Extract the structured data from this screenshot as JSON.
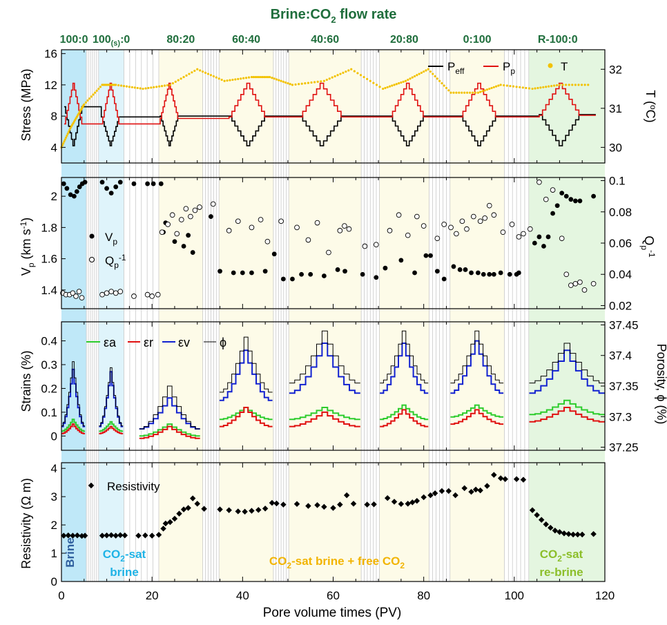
{
  "figure": {
    "top_title": "Brine:CO",
    "top_title_sub": "2",
    "top_title_tail": " flow rate",
    "xlabel": "Pore volume times (PV)",
    "x_range": [
      0,
      120
    ],
    "x_ticks": [
      "0",
      "20",
      "40",
      "60",
      "80",
      "100",
      "120"
    ]
  },
  "colors": {
    "stage_green": "#1f6e3c",
    "brine_blue": "#2f5f9e",
    "co2sat_cyan": "#1fb3e6",
    "free_co2_yellow": "#f2b400",
    "rebrine_green": "#8cbf2a",
    "peff": "#000000",
    "pp": "#e01010",
    "temp": "#f2c200",
    "ea": "#2ccc2c",
    "er": "#e01010",
    "ev": "#1020d0",
    "phi": "#000000"
  },
  "stages": [
    {
      "main": "100:0",
      "sub": "",
      "tail": ""
    },
    {
      "main": "100",
      "sub": "(s)",
      "tail": ":0"
    },
    {
      "main": "80:20",
      "sub": "",
      "tail": ""
    },
    {
      "main": "60:40",
      "sub": "",
      "tail": ""
    },
    {
      "main": "40:60",
      "sub": "",
      "tail": ""
    },
    {
      "main": "20:80",
      "sub": "",
      "tail": ""
    },
    {
      "main": "0:100",
      "sub": "",
      "tail": ""
    },
    {
      "main": "R-100:0",
      "sub": "",
      "tail": ""
    }
  ],
  "region_labels": {
    "brine": "Brine",
    "co2sat_1": "CO",
    "co2sat_1_sub": "2",
    "co2sat_1_tail": "-sat",
    "co2sat_2": "brine",
    "free_1": "CO",
    "free_1_sub": "2",
    "free_1_tail": "-sat brine + free CO",
    "free_1_sub2": "2",
    "rebrine_1": "CO",
    "rebrine_1_sub": "2",
    "rebrine_1_tail": "-sat",
    "rebrine_2": "re-brine"
  },
  "panel_stress": {
    "ylabel": "Stress (MPa)",
    "ylabel_right": "T (",
    "ylabel_right_sup": "o",
    "ylabel_right_tail": "C)",
    "y_ticks": [
      "4",
      "8",
      "12",
      "16"
    ],
    "y_right_ticks": [
      "30",
      "31",
      "32"
    ],
    "legend": {
      "peff": "P",
      "peff_sub": "eff",
      "pp": "P",
      "pp_sub": "p",
      "t": "T"
    }
  },
  "panel_velocity": {
    "ylabel": "V",
    "ylabel_sub": "p",
    "ylabel_tail": " (km s",
    "ylabel_sup": "-1",
    "ylabel_end": ")",
    "ylabel_right": "Q",
    "ylabel_right_sub": "p",
    "ylabel_right_sup": "-1",
    "y_ticks": [
      "1.4",
      "1.6",
      "1.8",
      "2"
    ],
    "y_right_ticks": [
      "0.02",
      "0.04",
      "0.06",
      "0.08",
      "0.1"
    ],
    "legend": {
      "vp": "V",
      "vp_sub": "p",
      "q": "Q",
      "q_sub": "p",
      "q_sup": "-1"
    }
  },
  "panel_strain": {
    "ylabel": "Strains (%)",
    "ylabel_right": "Porosity, ϕ (%)",
    "y_ticks": [
      "0",
      "0.1",
      "0.2",
      "0.3",
      "0.4"
    ],
    "y_right_ticks": [
      "37.25",
      "37.3",
      "37.35",
      "37.4",
      "37.45"
    ],
    "legend": {
      "ea": "εa",
      "er": "εr",
      "ev": "εv",
      "phi": "ϕ"
    }
  },
  "panel_resistivity": {
    "ylabel": "Resistivity (Ω m)",
    "y_ticks": [
      "0",
      "1",
      "2",
      "3",
      "4"
    ],
    "legend": "Resistivity"
  },
  "chart_data": {
    "type": "scatter",
    "x_unit": "Pore volume times (PV)",
    "xlim": [
      0,
      120
    ],
    "stage_boundaries_pv": [
      [
        0,
        5.5
      ],
      [
        8.2,
        13.8
      ],
      [
        21.5,
        31.2
      ],
      [
        34.8,
        46.8
      ],
      [
        50.2,
        66.2
      ],
      [
        70.2,
        81.2
      ],
      [
        85.8,
        97.8
      ],
      [
        103.2,
        120
      ]
    ],
    "stress": {
      "ylim": [
        2,
        16.5
      ],
      "temp_ylim": [
        29.6,
        32.5
      ],
      "peff_hold_levels_MPa": [
        9.2,
        7.9,
        8.0,
        8.0,
        8.0,
        8.0,
        8.0,
        8.2
      ],
      "pp_hold_levels_MPa": [
        7.0,
        7.0,
        7.7,
        7.9,
        7.9,
        7.9,
        7.9,
        8.1
      ],
      "peak_pp_MPa": 12.2,
      "min_peff_MPa": 4.2,
      "temperature_C": {
        "x": [
          0,
          2,
          4,
          5,
          9,
          12,
          18,
          24,
          30,
          36,
          42,
          46,
          51,
          58,
          64,
          71,
          76,
          81,
          86,
          92,
          97,
          104,
          110,
          117
        ],
        "y": [
          30.0,
          30.5,
          30.9,
          31.1,
          31.6,
          31.6,
          31.5,
          31.6,
          32.0,
          31.7,
          31.8,
          31.8,
          31.6,
          31.7,
          32.0,
          31.5,
          31.7,
          32.0,
          31.4,
          31.4,
          31.6,
          31.5,
          31.6,
          31.6
        ]
      }
    },
    "velocity": {
      "vp_ylim": [
        1.28,
        2.12
      ],
      "q_ylim": [
        0.018,
        0.102
      ],
      "vp": {
        "x": [
          0.5,
          1.2,
          2,
          2.8,
          3.4,
          4,
          4.6,
          5.2,
          9,
          10,
          11,
          12,
          13,
          16,
          19,
          20.3,
          22,
          22.5,
          23,
          25,
          27,
          28,
          29,
          33,
          35,
          38,
          40,
          42,
          45,
          47,
          49,
          51,
          53,
          55,
          58,
          61,
          62.6,
          66.5,
          69.5,
          71.5,
          75,
          78,
          80.5,
          81.5,
          83,
          84.5,
          86.6,
          88,
          89.2,
          90.5,
          92,
          93.2,
          94.5,
          95.5,
          97,
          99,
          100.5,
          101,
          104.5,
          105.5,
          106.5,
          107.5,
          108.5,
          109.5,
          110.5,
          111.5,
          112.5,
          113.5,
          114.5,
          117.5
        ],
        "y": [
          2.08,
          2.05,
          2.01,
          2.0,
          2.03,
          2.06,
          2.08,
          2.09,
          2.09,
          2.05,
          2.02,
          2.06,
          2.09,
          2.08,
          2.08,
          2.08,
          2.08,
          1.77,
          1.83,
          1.71,
          1.68,
          1.75,
          1.64,
          1.87,
          1.52,
          1.51,
          1.51,
          1.51,
          1.52,
          1.63,
          1.47,
          1.47,
          1.5,
          1.5,
          1.49,
          1.53,
          1.52,
          1.5,
          1.48,
          1.54,
          1.59,
          1.51,
          1.62,
          1.62,
          1.52,
          1.47,
          1.55,
          1.53,
          1.53,
          1.51,
          1.51,
          1.5,
          1.5,
          1.5,
          1.51,
          1.5,
          1.5,
          1.51,
          1.7,
          1.74,
          1.68,
          1.74,
          1.89,
          1.94,
          2.02,
          2.0,
          1.98,
          1.97,
          1.97,
          2.0
        ],
        "name": "V"
      },
      "qp_inv": {
        "x": [
          0.3,
          1,
          1.8,
          2.5,
          3.2,
          3.9,
          4.5,
          9,
          10,
          11,
          12,
          13,
          16,
          19,
          20,
          21.3,
          22.2,
          23.5,
          24.5,
          25.5,
          26.5,
          27.5,
          28.5,
          29.5,
          30.5,
          33.5,
          37,
          39,
          42,
          44,
          45.5,
          48.5,
          52,
          54.5,
          56.5,
          59,
          61.5,
          62.5,
          63.5,
          67,
          69.5,
          72.5,
          74.5,
          76.5,
          78.5,
          80,
          83,
          84.5,
          86,
          87.2,
          88.5,
          89.5,
          91,
          92.5,
          93.5,
          94.5,
          95.5,
          97.5,
          99.5,
          101,
          102,
          103.5,
          105.5,
          107,
          108.5,
          110.5,
          111.5,
          112.5,
          113.5,
          114.5,
          115.5,
          117.5
        ],
        "y": [
          0.028,
          0.027,
          0.027,
          0.028,
          0.026,
          0.029,
          0.025,
          0.027,
          0.028,
          0.029,
          0.028,
          0.029,
          0.026,
          0.027,
          0.026,
          0.027,
          0.067,
          0.072,
          0.078,
          0.066,
          0.075,
          0.082,
          0.077,
          0.081,
          0.083,
          0.085,
          0.068,
          0.074,
          0.07,
          0.075,
          0.061,
          0.074,
          0.07,
          0.062,
          0.073,
          0.054,
          0.068,
          0.071,
          0.069,
          0.058,
          0.059,
          0.068,
          0.078,
          0.065,
          0.077,
          0.071,
          0.063,
          0.072,
          0.07,
          0.066,
          0.074,
          0.069,
          0.077,
          0.074,
          0.076,
          0.084,
          0.078,
          0.067,
          0.072,
          0.064,
          0.066,
          0.069,
          0.099,
          0.088,
          0.094,
          0.063,
          0.04,
          0.033,
          0.034,
          0.035,
          0.03,
          0.034
        ],
        "name": "Q"
      }
    },
    "strains": {
      "strain_ylim": [
        -0.06,
        0.48
      ],
      "porosity_ylim": [
        37.245,
        37.455
      ],
      "stage_segments_pv": [
        [
          0,
          5.2
        ],
        [
          8.3,
          13.6
        ],
        [
          17.2,
          30.6
        ],
        [
          34.9,
          46.6
        ],
        [
          50.3,
          66.0
        ],
        [
          70.3,
          81.0
        ],
        [
          85.9,
          97.6
        ],
        [
          103.3,
          120
        ]
      ],
      "baseline_pct": {
        "ea": [
          0.02,
          0.02,
          0.0,
          0.07,
          0.07,
          0.07,
          0.08,
          0.09
        ],
        "er": [
          0.01,
          0.01,
          -0.01,
          0.04,
          0.04,
          0.04,
          0.05,
          0.06
        ],
        "ev": [
          0.04,
          0.04,
          0.03,
          0.15,
          0.18,
          0.18,
          0.18,
          0.18
        ]
      },
      "peak_pct": {
        "ea": [
          0.07,
          0.06,
          0.05,
          0.12,
          0.12,
          0.13,
          0.13,
          0.15
        ],
        "er": [
          0.05,
          0.04,
          0.04,
          0.12,
          0.1,
          0.11,
          0.11,
          0.12
        ],
        "ev": [
          0.28,
          0.27,
          0.16,
          0.36,
          0.39,
          0.39,
          0.4,
          0.36
        ]
      },
      "porosity_peak_pct": [
        37.39,
        37.38,
        37.35,
        37.43,
        37.44,
        37.44,
        37.44,
        37.42
      ]
    },
    "resistivity": {
      "ylim": [
        0,
        4.2
      ],
      "x": [
        0.5,
        1.5,
        2.5,
        3.5,
        4.5,
        5.2,
        9,
        10,
        11,
        12,
        13,
        14,
        17,
        18.5,
        20,
        21.5,
        22.5,
        23,
        24,
        25,
        26,
        27,
        28,
        29,
        30,
        31.5,
        35,
        37,
        39,
        40.5,
        42,
        43.5,
        45,
        46.5,
        47.5,
        49,
        52,
        54.5,
        56.5,
        58,
        60,
        61.5,
        63,
        64.5,
        67.5,
        69,
        72,
        73.5,
        75,
        76.5,
        77.5,
        78.5,
        80,
        81.5,
        82.5,
        84,
        85.5,
        87,
        89,
        90.5,
        91.5,
        92.5,
        94,
        95.5,
        97,
        98,
        100.5,
        102,
        104,
        105,
        106,
        107,
        108,
        109,
        110,
        111,
        112,
        113,
        114,
        115,
        117.5
      ],
      "y": [
        1.62,
        1.63,
        1.62,
        1.63,
        1.61,
        1.62,
        1.62,
        1.63,
        1.64,
        1.62,
        1.64,
        1.63,
        1.62,
        1.63,
        1.62,
        1.65,
        1.87,
        2.05,
        2.1,
        2.22,
        2.4,
        2.55,
        2.6,
        2.94,
        2.75,
        2.57,
        2.55,
        2.52,
        2.48,
        2.47,
        2.5,
        2.53,
        2.58,
        2.78,
        2.76,
        2.72,
        2.74,
        2.67,
        2.7,
        2.64,
        2.6,
        2.72,
        3.05,
        2.75,
        2.72,
        2.73,
        2.95,
        2.82,
        2.74,
        2.75,
        2.8,
        2.85,
        2.98,
        3.05,
        3.12,
        3.2,
        3.2,
        3.05,
        3.3,
        3.17,
        3.25,
        3.22,
        3.38,
        3.77,
        3.65,
        3.62,
        3.62,
        3.6,
        2.52,
        2.35,
        2.18,
        2.02,
        1.9,
        1.8,
        1.75,
        1.7,
        1.68,
        1.66,
        1.66,
        1.66,
        1.68
      ],
      "name": "Resistivity"
    }
  }
}
